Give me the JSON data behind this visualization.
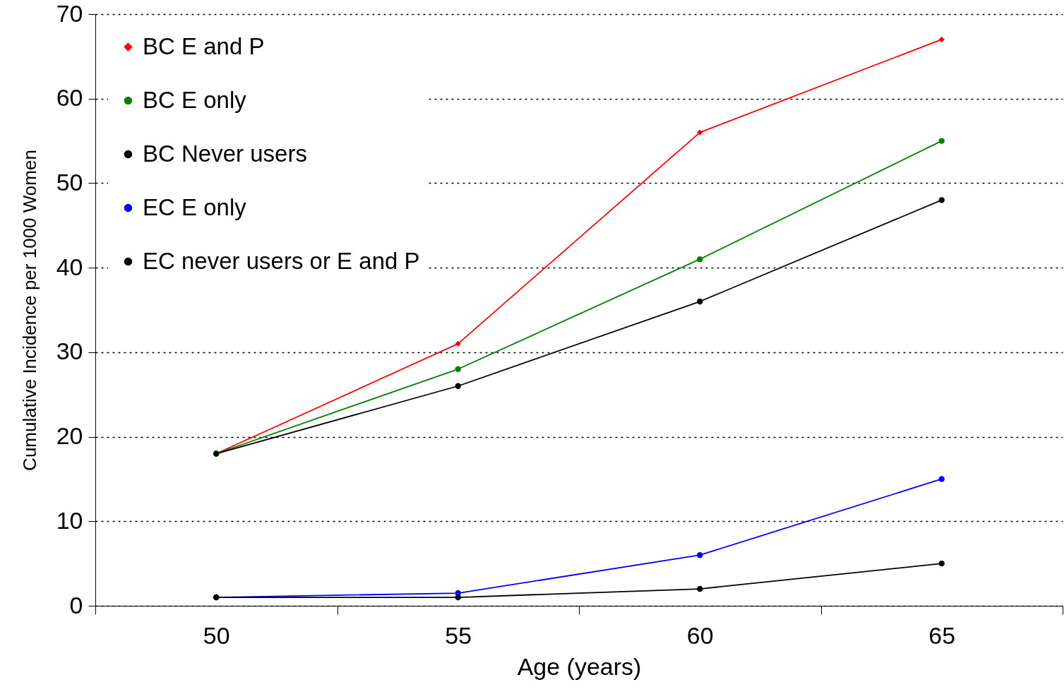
{
  "chart_data": {
    "type": "line",
    "xlabel": "Age (years)",
    "ylabel": "Cumulative Incidence per 1000 Women",
    "categories": [
      "50",
      "55",
      "60",
      "65"
    ],
    "ylim": [
      0,
      70
    ],
    "yticks": [
      0,
      10,
      20,
      30,
      40,
      50,
      60,
      70
    ],
    "grid": "y",
    "legend": "top left",
    "line_style": "solid",
    "series": [
      {
        "name": "BC E and P",
        "color": "#ff0000",
        "marker": "diamond",
        "values": [
          18,
          31,
          56,
          67
        ]
      },
      {
        "name": "BC E only",
        "color": "#008000",
        "marker": "circle",
        "values": [
          18,
          28,
          41,
          55
        ]
      },
      {
        "name": "BC Never users",
        "color": "#000000",
        "marker": "circle",
        "values": [
          18,
          26,
          36,
          48
        ]
      },
      {
        "name": "EC E only",
        "color": "#0000ff",
        "marker": "circle",
        "values": [
          1,
          1.5,
          6,
          15
        ]
      },
      {
        "name": "EC never users or E and P",
        "color": "#000001",
        "marker": "circle",
        "values": [
          1,
          1,
          2,
          5
        ]
      }
    ]
  }
}
